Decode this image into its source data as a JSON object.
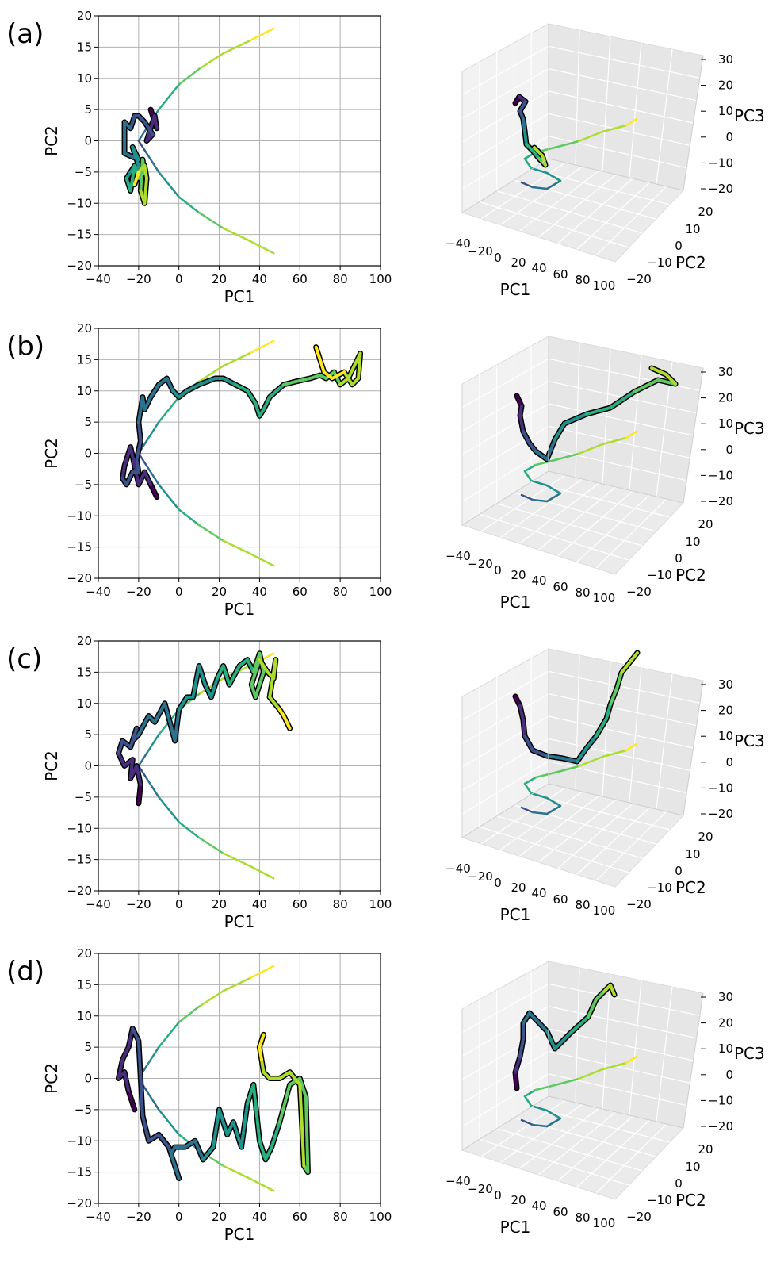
{
  "panels": [
    {
      "label": "(a)"
    },
    {
      "label": "(b)"
    },
    {
      "label": "(c)"
    },
    {
      "label": "(d)"
    }
  ],
  "axes2d": {
    "xlabel": "PC1",
    "ylabel": "PC2",
    "xticks": [
      "−40",
      "−20",
      "0",
      "20",
      "40",
      "60",
      "80",
      "100"
    ],
    "yticks": [
      "20",
      "15",
      "10",
      "5",
      "0",
      "−5",
      "−10",
      "−15",
      "−20"
    ]
  },
  "axes3d": {
    "xlabel": "PC1",
    "ylabel": "PC2",
    "zlabel": "PC3",
    "xticks": [
      "−40",
      "−20",
      "0",
      "20",
      "40",
      "60",
      "80",
      "100"
    ],
    "yticks": [
      "20",
      "10",
      "0",
      "−10",
      "−20"
    ],
    "zticks": [
      "30",
      "20",
      "10",
      "0",
      "−10",
      "−20"
    ]
  },
  "chart_data": [
    {
      "type": "line",
      "panel": "(a)",
      "xlabel": "PC1",
      "ylabel": "PC2",
      "xlim": [
        -40,
        100
      ],
      "ylim": [
        -20,
        20
      ],
      "grid": true,
      "series": [
        {
          "role": "reference",
          "x": [
            47,
            35,
            22,
            10,
            0,
            -10,
            -16,
            -20,
            -16,
            -10,
            0,
            10,
            22,
            35,
            47
          ],
          "y": [
            18,
            16,
            14,
            11.5,
            9,
            5,
            2,
            0,
            -2,
            -5,
            -9,
            -11.5,
            -14,
            -16,
            -18
          ]
        },
        {
          "role": "trajectory",
          "x": [
            -14,
            -11,
            -12,
            -16,
            -13,
            -17,
            -20,
            -22,
            -24,
            -27,
            -27,
            -20,
            -23,
            -19,
            -22,
            -26,
            -24,
            -22,
            -20,
            -17,
            -18,
            -19,
            -17,
            -16,
            -17,
            -20,
            -22
          ],
          "y": [
            5,
            2,
            4,
            0,
            1,
            3,
            4,
            4,
            2,
            3,
            -2,
            -3,
            -1,
            -5,
            -4,
            -6,
            -8,
            -4,
            -6,
            -5,
            -3,
            -8,
            -10,
            -6,
            -4,
            -5,
            -7
          ]
        }
      ]
    },
    {
      "type": "line",
      "panel": "(b)",
      "xlabel": "PC1",
      "ylabel": "PC2",
      "xlim": [
        -40,
        100
      ],
      "ylim": [
        -20,
        20
      ],
      "grid": true,
      "series": [
        {
          "role": "reference",
          "x": [
            47,
            35,
            22,
            10,
            0,
            -10,
            -16,
            -20,
            -16,
            -10,
            0,
            10,
            22,
            35,
            47
          ],
          "y": [
            18,
            16,
            14,
            11.5,
            9,
            5,
            2,
            0,
            -2,
            -5,
            -9,
            -11.5,
            -14,
            -16,
            -18
          ]
        },
        {
          "role": "trajectory",
          "x": [
            -11,
            -14,
            -17,
            -20,
            -22,
            -24,
            -27,
            -28,
            -26,
            -23,
            -20,
            -21,
            -19,
            -20,
            -18,
            -17,
            -14,
            -10,
            -6,
            -3,
            0,
            4,
            10,
            18,
            22,
            28,
            34,
            38,
            40,
            42,
            45,
            52,
            58,
            65,
            70,
            73,
            77,
            80,
            84,
            87,
            90,
            89,
            86,
            82,
            76,
            72,
            68
          ],
          "y": [
            -7,
            -5,
            -3,
            -5,
            -2,
            1,
            -2,
            -4,
            -5,
            -3,
            -3,
            -1,
            2,
            5,
            9,
            7,
            9,
            11,
            12,
            10,
            9,
            10,
            11,
            12,
            12,
            11,
            10,
            8,
            6,
            7,
            9,
            11,
            11.5,
            12,
            12.5,
            12,
            13,
            11,
            12,
            14,
            16,
            12,
            11,
            13,
            12,
            13,
            17
          ]
        }
      ]
    },
    {
      "type": "line",
      "panel": "(c)",
      "xlabel": "PC1",
      "ylabel": "PC2",
      "xlim": [
        -40,
        100
      ],
      "ylim": [
        -20,
        20
      ],
      "grid": true,
      "series": [
        {
          "role": "reference",
          "x": [
            47,
            35,
            22,
            10,
            0,
            -10,
            -16,
            -20,
            -16,
            -10,
            0,
            10,
            22,
            35,
            47
          ],
          "y": [
            18,
            16,
            14,
            11.5,
            9,
            5,
            2,
            0,
            -2,
            -5,
            -9,
            -11.5,
            -14,
            -16,
            -18
          ]
        },
        {
          "role": "trajectory",
          "x": [
            -20,
            -19,
            -21,
            -24,
            -23,
            -27,
            -30,
            -28,
            -24,
            -21,
            -23,
            -20,
            -15,
            -12,
            -7,
            -2,
            0,
            4,
            7,
            10,
            13,
            16,
            19,
            22,
            25,
            30,
            34,
            37,
            40,
            42,
            38,
            36,
            40,
            44,
            47,
            48,
            45,
            50,
            52,
            55
          ],
          "y": [
            -6,
            -3,
            0,
            -2,
            1,
            0,
            2,
            4,
            3,
            6,
            4,
            5,
            8,
            7,
            10,
            4,
            9,
            11,
            11,
            16,
            13,
            11,
            14,
            16,
            13,
            16,
            17,
            15,
            18,
            15,
            11,
            13,
            17,
            15,
            14,
            17,
            11,
            9,
            8,
            6
          ]
        }
      ]
    },
    {
      "type": "line",
      "panel": "(d)",
      "xlabel": "PC1",
      "ylabel": "PC2",
      "xlim": [
        -40,
        100
      ],
      "ylim": [
        -20,
        20
      ],
      "grid": true,
      "series": [
        {
          "role": "reference",
          "x": [
            47,
            35,
            22,
            10,
            0,
            -10,
            -16,
            -20,
            -16,
            -10,
            0,
            10,
            22,
            35,
            47
          ],
          "y": [
            18,
            16,
            14,
            11.5,
            9,
            5,
            2,
            0,
            -2,
            -5,
            -9,
            -11.5,
            -14,
            -16,
            -18
          ]
        },
        {
          "role": "trajectory",
          "x": [
            -22,
            -25,
            -27,
            -30,
            -28,
            -25,
            -23,
            -20,
            -18,
            -15,
            -10,
            -5,
            0,
            -4,
            -2,
            3,
            8,
            12,
            17,
            20,
            24,
            27,
            31,
            34,
            37,
            40,
            43,
            46,
            50,
            55,
            60,
            63,
            64,
            62,
            60,
            55,
            50,
            45,
            42,
            41,
            40,
            42
          ],
          "y": [
            -5,
            -2,
            1,
            0,
            3,
            5,
            8,
            6,
            -6,
            -10,
            -9,
            -11,
            -16,
            -12,
            -11,
            -11,
            -10,
            -13,
            -11,
            -5,
            -9,
            -7,
            -11,
            -4,
            -1,
            -10,
            -13,
            -11,
            -7,
            -1,
            0,
            -3,
            -15,
            -14,
            -1,
            1,
            0,
            0,
            1,
            3,
            5,
            7
          ]
        }
      ]
    }
  ]
}
